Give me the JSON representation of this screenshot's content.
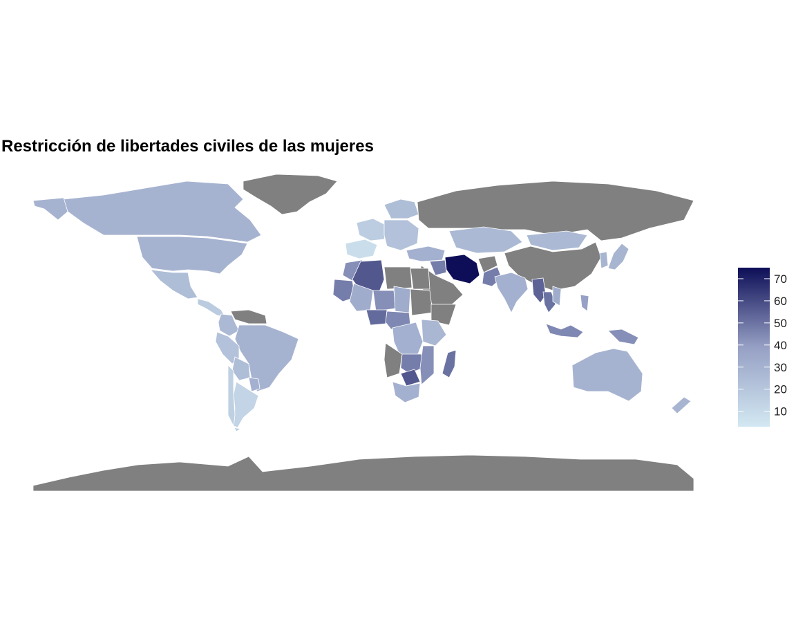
{
  "title": "Restricción de libertades civiles de las mujeres",
  "legend": {
    "ticks": [
      "10",
      "20",
      "30",
      "40",
      "50",
      "60",
      "70"
    ],
    "tick_values": [
      10,
      20,
      30,
      40,
      50,
      60,
      70
    ],
    "range": [
      3,
      75
    ],
    "color_low": "#d3e8f2",
    "color_high": "#0d0e57",
    "na_color": "#808080"
  },
  "regions": [
    {
      "name": "Canada",
      "value": 27
    },
    {
      "name": "United States",
      "value": 27
    },
    {
      "name": "Alaska",
      "value": 27
    },
    {
      "name": "Mexico",
      "value": 22
    },
    {
      "name": "Greenland",
      "value": null
    },
    {
      "name": "Central America",
      "value": 16
    },
    {
      "name": "Colombia",
      "value": 24
    },
    {
      "name": "Venezuela",
      "value": null
    },
    {
      "name": "Brazil",
      "value": 27
    },
    {
      "name": "Peru",
      "value": 20
    },
    {
      "name": "Bolivia",
      "value": 22
    },
    {
      "name": "Paraguay",
      "value": 28
    },
    {
      "name": "Argentina",
      "value": 12
    },
    {
      "name": "Chile",
      "value": 14
    },
    {
      "name": "Spain",
      "value": 8
    },
    {
      "name": "Western Europe",
      "value": 15
    },
    {
      "name": "Central Europe",
      "value": 20
    },
    {
      "name": "Scandinavia",
      "value": 22
    },
    {
      "name": "Russia",
      "value": null
    },
    {
      "name": "Turkey",
      "value": 28
    },
    {
      "name": "Kazakhstan",
      "value": 24
    },
    {
      "name": "Mongolia",
      "value": 24
    },
    {
      "name": "China",
      "value": null
    },
    {
      "name": "Japan",
      "value": 26
    },
    {
      "name": "Korea",
      "value": 26
    },
    {
      "name": "Iran",
      "value": 75
    },
    {
      "name": "Arabian Peninsula",
      "value": null
    },
    {
      "name": "Iraq",
      "value": 45
    },
    {
      "name": "Afghanistan",
      "value": null
    },
    {
      "name": "Pakistan",
      "value": 45
    },
    {
      "name": "India",
      "value": 28
    },
    {
      "name": "Myanmar",
      "value": 52
    },
    {
      "name": "Thailand",
      "value": 48
    },
    {
      "name": "Vietnam",
      "value": 30
    },
    {
      "name": "Indonesia",
      "value": 42
    },
    {
      "name": "Philippines",
      "value": 35
    },
    {
      "name": "Papua New Guinea",
      "value": 40
    },
    {
      "name": "Australia",
      "value": 27
    },
    {
      "name": "New Zealand",
      "value": 26
    },
    {
      "name": "Morocco",
      "value": 40
    },
    {
      "name": "Algeria",
      "value": 55
    },
    {
      "name": "Libya",
      "value": null
    },
    {
      "name": "Egypt",
      "value": null
    },
    {
      "name": "Mauritania",
      "value": 45
    },
    {
      "name": "Mali",
      "value": 30
    },
    {
      "name": "Niger",
      "value": 40
    },
    {
      "name": "Chad",
      "value": 30
    },
    {
      "name": "Sudan",
      "value": null
    },
    {
      "name": "Nigeria",
      "value": 50
    },
    {
      "name": "Central Africa",
      "value": 42
    },
    {
      "name": "DR Congo",
      "value": 28
    },
    {
      "name": "Ethiopia",
      "value": null
    },
    {
      "name": "East Africa",
      "value": 25
    },
    {
      "name": "Angola",
      "value": null
    },
    {
      "name": "Zambia",
      "value": 45
    },
    {
      "name": "Mozambique",
      "value": 40
    },
    {
      "name": "Botswana",
      "value": 55
    },
    {
      "name": "South Africa",
      "value": 28
    },
    {
      "name": "Madagascar",
      "value": 48
    },
    {
      "name": "Antarctica",
      "value": null
    }
  ]
}
